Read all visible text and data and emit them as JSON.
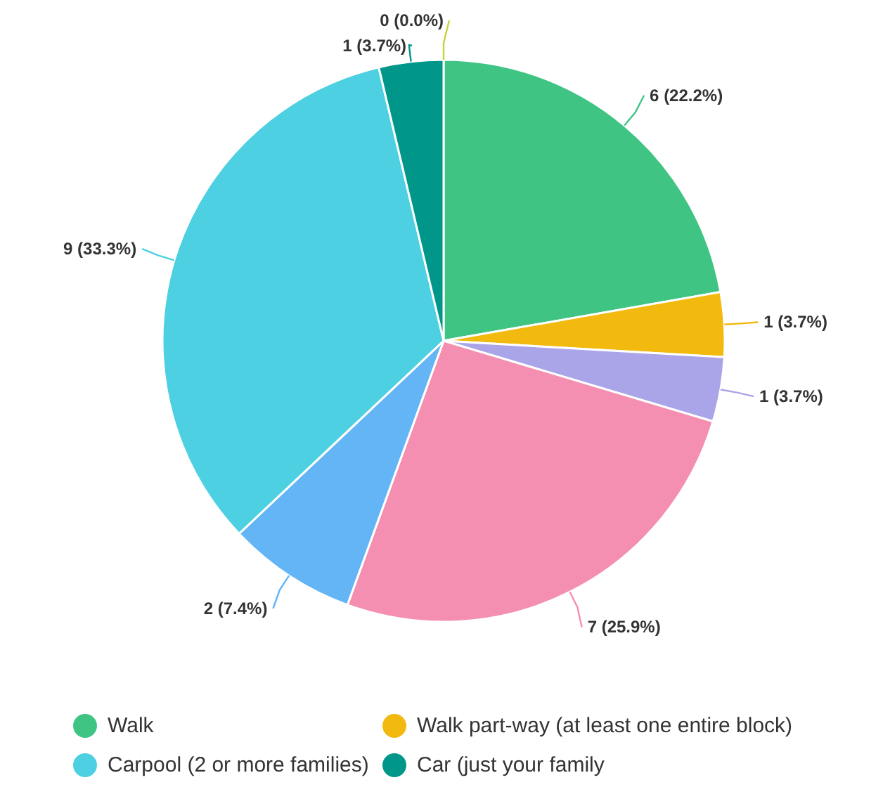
{
  "chart_data": {
    "type": "pie",
    "categories": [
      "Walk",
      "Walk part-way (at least one entire block)",
      null,
      null,
      null,
      "Carpool (2 or more families)",
      "Car (just your family",
      null
    ],
    "values": [
      6,
      1,
      1,
      7,
      2,
      9,
      1,
      0
    ],
    "colors": [
      "#40c484",
      "#f2b90f",
      "#aaa4e8",
      "#f48fb1",
      "#64b5f6",
      "#4dd0e1",
      "#00968a",
      "#c6d43a"
    ],
    "value_labels": [
      "6 (22.2%)",
      "1 (3.7%)",
      "1 (3.7%)",
      "7 (25.9%)",
      "2 (7.4%)",
      "9 (33.3%)",
      "1 (3.7%)",
      "0 (0.0%)"
    ],
    "legend": "bottom"
  }
}
